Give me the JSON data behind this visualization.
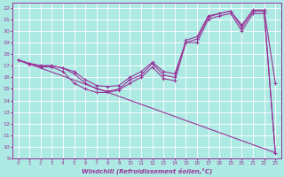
{
  "xlabel": "Windchill (Refroidissement éolien,°C)",
  "background_color": "#aeeae4",
  "grid_color": "#ffffff",
  "line_color": "#993399",
  "xlim": [
    -0.5,
    23.5
  ],
  "ylim": [
    9,
    22.4
  ],
  "xticks": [
    0,
    1,
    2,
    3,
    4,
    5,
    6,
    7,
    8,
    9,
    10,
    11,
    12,
    13,
    14,
    15,
    16,
    17,
    18,
    19,
    20,
    21,
    22,
    23
  ],
  "yticks": [
    9,
    10,
    11,
    12,
    13,
    14,
    15,
    16,
    17,
    18,
    19,
    20,
    21,
    22
  ],
  "line1_x": [
    0,
    1,
    2,
    3,
    4,
    5,
    6,
    7,
    8,
    9,
    10,
    11,
    12,
    13,
    14,
    15,
    16,
    17,
    18,
    19,
    20,
    21,
    22,
    23
  ],
  "line1_y": [
    17.5,
    17.2,
    17.0,
    17.0,
    16.8,
    16.5,
    15.8,
    15.3,
    15.2,
    15.3,
    16.0,
    16.5,
    17.3,
    16.5,
    16.3,
    19.0,
    19.3,
    21.2,
    21.5,
    21.7,
    20.5,
    21.8,
    21.8,
    15.5
  ],
  "line2_x": [
    0,
    1,
    2,
    3,
    4,
    5,
    6,
    7,
    8,
    9,
    10,
    11,
    12,
    13,
    14,
    15,
    16,
    17,
    18,
    19,
    20,
    21,
    22,
    23
  ],
  "line2_y": [
    17.5,
    17.2,
    17.0,
    17.0,
    16.8,
    16.3,
    15.5,
    15.0,
    14.8,
    15.0,
    15.8,
    16.2,
    17.2,
    16.2,
    16.0,
    19.2,
    19.5,
    21.3,
    21.5,
    21.7,
    20.3,
    21.7,
    21.7,
    9.5
  ],
  "line3_x": [
    0,
    1,
    2,
    3,
    4,
    5,
    6,
    7,
    8,
    9,
    10,
    11,
    12,
    13,
    14,
    15,
    16,
    17,
    18,
    19,
    20,
    21,
    22,
    23
  ],
  "line3_y": [
    17.5,
    17.1,
    16.9,
    16.9,
    16.5,
    15.5,
    15.0,
    14.7,
    14.7,
    14.9,
    15.5,
    16.0,
    16.9,
    15.9,
    15.7,
    19.0,
    19.0,
    21.0,
    21.3,
    21.5,
    20.0,
    21.5,
    21.5,
    9.5
  ],
  "line4_x": [
    0,
    23
  ],
  "line4_y": [
    17.5,
    9.5
  ]
}
